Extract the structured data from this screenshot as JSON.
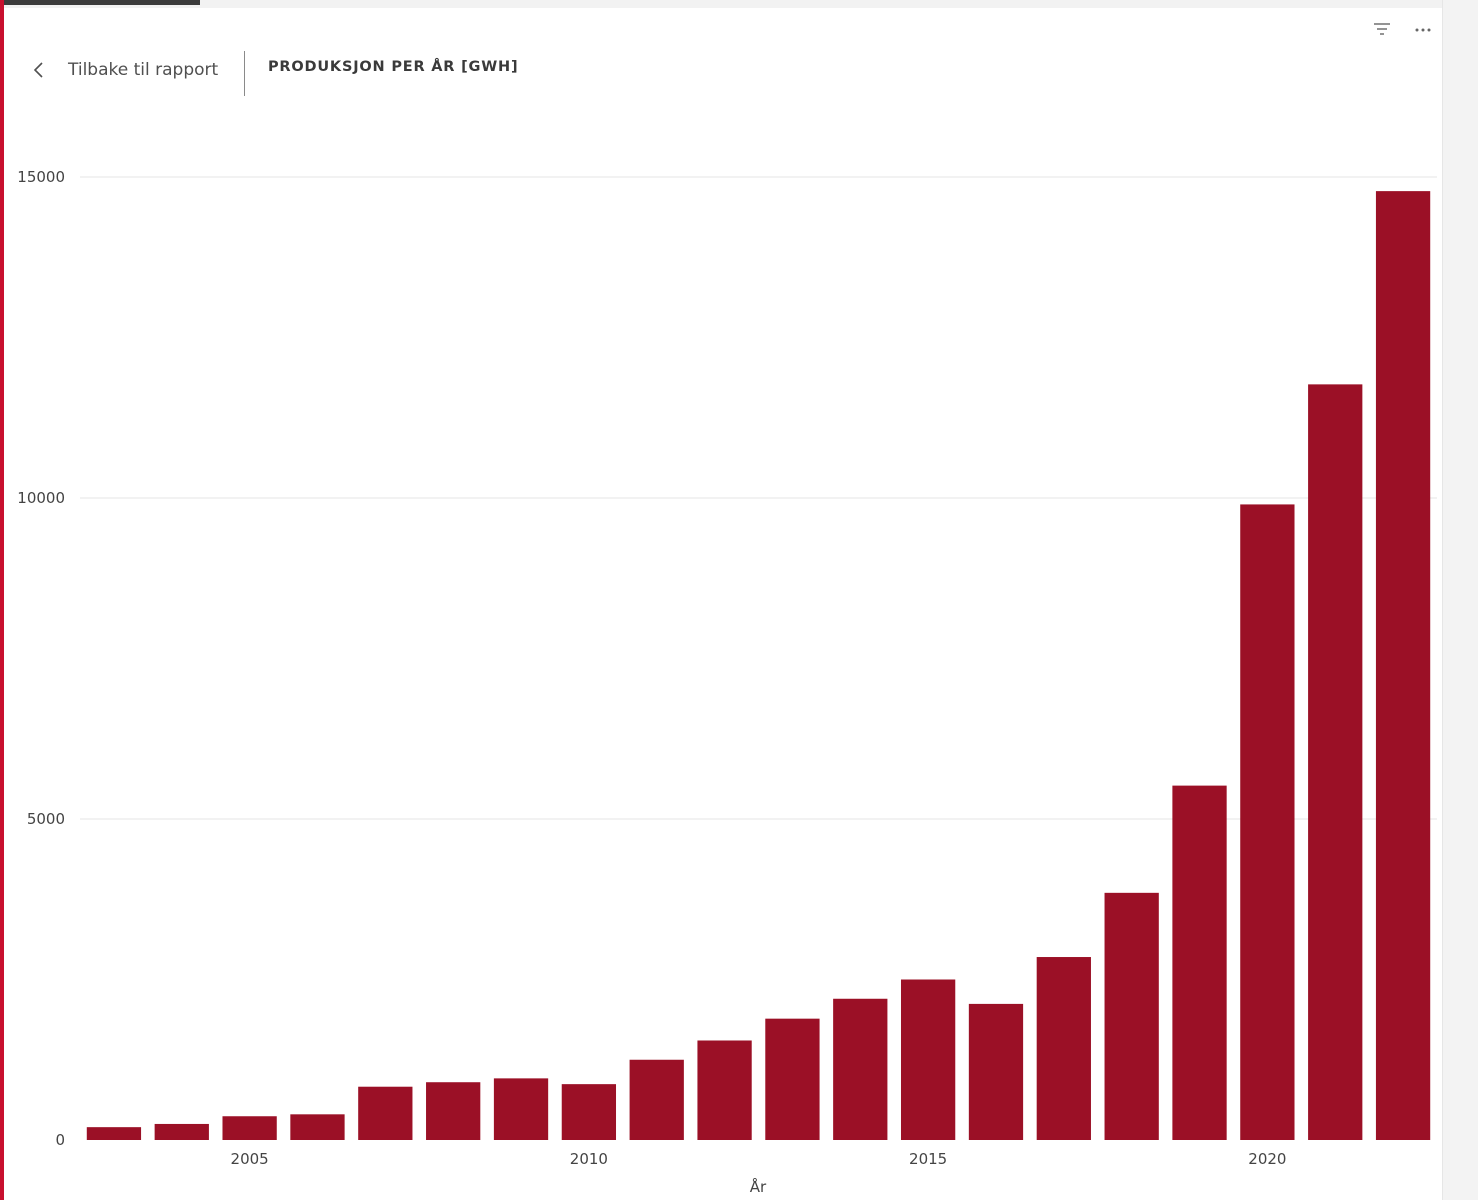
{
  "header": {
    "back_label": "Tilbake til rapport",
    "title": "PRODUKSJON PER ÅR [GWH]"
  },
  "icons": {
    "back": "chevron-left-icon",
    "filter": "filter-icon",
    "more": "more-options-icon"
  },
  "colors": {
    "bar": "#9b1026",
    "accent": "#c8102e",
    "grid": "#e6e6e6"
  },
  "chart_data": {
    "type": "bar",
    "x": [
      2003,
      2004,
      2005,
      2006,
      2007,
      2008,
      2009,
      2010,
      2011,
      2012,
      2013,
      2014,
      2015,
      2016,
      2017,
      2018,
      2019,
      2020,
      2021,
      2022
    ],
    "values": [
      200,
      250,
      370,
      400,
      830,
      900,
      960,
      870,
      1250,
      1550,
      1890,
      2200,
      2500,
      2120,
      2850,
      3850,
      5520,
      9900,
      11770,
      14780
    ],
    "xticks": [
      2005,
      2010,
      2015,
      2020
    ],
    "yticks": [
      0,
      5000,
      10000,
      15000
    ],
    "ylim": [
      0,
      15000
    ],
    "xlabel": "År",
    "ylabel": "",
    "grid": true
  }
}
